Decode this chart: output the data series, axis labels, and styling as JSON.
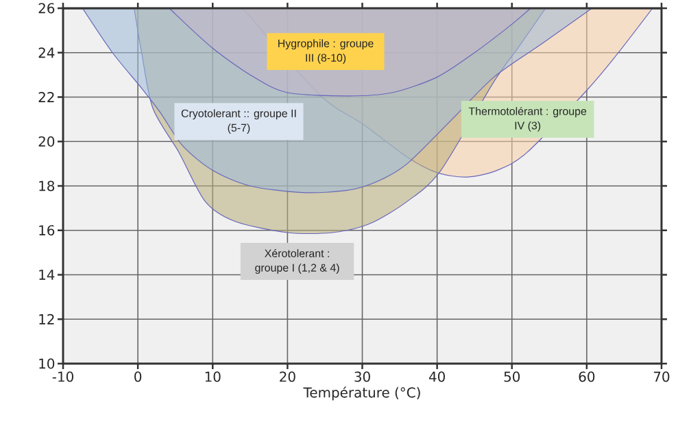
{
  "chart_data": {
    "type": "area",
    "xlabel": "Température (°C)",
    "xlim": [
      -10,
      70
    ],
    "ylim": [
      10,
      26
    ],
    "xticks": [
      -10,
      0,
      10,
      20,
      30,
      40,
      50,
      60,
      70
    ],
    "yticks": [
      10,
      12,
      14,
      16,
      18,
      20,
      22,
      24,
      26
    ],
    "grid": true,
    "series": [
      {
        "name": "Thermotolérant : groupe IV (3)",
        "color": "#f9cfa8",
        "x": [
          14,
          24.3,
          30,
          36,
          40,
          44,
          48,
          52,
          60,
          64,
          68.8
        ],
        "values": [
          26,
          22.1,
          20.8,
          19.3,
          18.6,
          18.4,
          18.7,
          19.5,
          22.3,
          23.9,
          26
        ]
      },
      {
        "name": "Xérotolerant : groupe I (1,2 & 4)",
        "color": "#b8ad7a",
        "x": [
          -0.5,
          0.5,
          2,
          5.5,
          9,
          13,
          20,
          26,
          31,
          36,
          40.5,
          47.6,
          51,
          54.5
        ],
        "values": [
          26,
          24,
          21.5,
          19.5,
          17.3,
          16.4,
          15.9,
          15.9,
          16.3,
          17.3,
          18.7,
          22.7,
          24.3,
          26
        ]
      },
      {
        "name": "Cryotolerant :: groupe II (5-7)",
        "color": "#9db9d9",
        "x": [
          -7.4,
          -3.4,
          0.5,
          3,
          6,
          10,
          15,
          22,
          28,
          32,
          36,
          42,
          47.6,
          54,
          60.7
        ],
        "values": [
          26,
          24,
          22.4,
          21.3,
          19.8,
          18.7,
          18,
          17.7,
          17.8,
          18.2,
          19,
          21,
          22.9,
          24.4,
          26
        ]
      },
      {
        "name": "Hygrophile : groupe III (8-10)",
        "color": "#c3b6cc",
        "x": [
          4.2,
          10,
          15.5,
          20,
          28,
          34,
          40,
          45,
          49.7,
          52.5
        ],
        "values": [
          26,
          24.2,
          22.9,
          22.2,
          22.05,
          22.2,
          22.9,
          24,
          25.2,
          26
        ]
      }
    ]
  }
}
